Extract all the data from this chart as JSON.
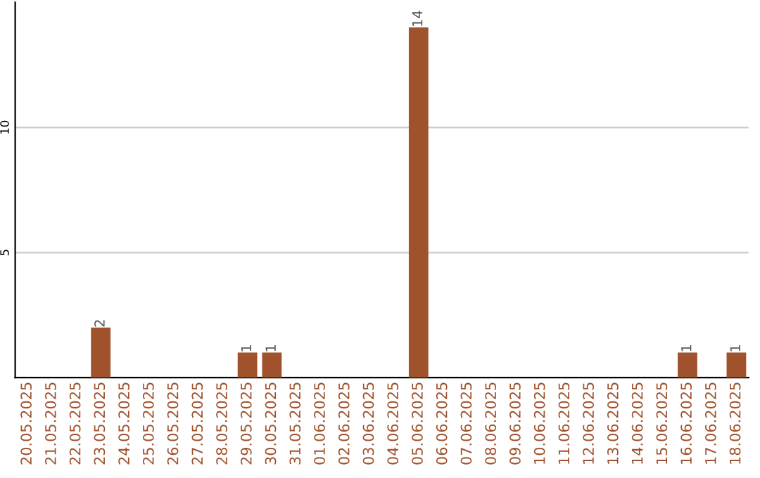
{
  "chart_data": {
    "type": "bar",
    "categories": [
      "20.05.2025",
      "21.05.2025",
      "22.05.2025",
      "23.05.2025",
      "24.05.2025",
      "25.05.2025",
      "26.05.2025",
      "27.05.2025",
      "28.05.2025",
      "29.05.2025",
      "30.05.2025",
      "31.05.2025",
      "01.06.2025",
      "02.06.2025",
      "03.06.2025",
      "04.06.2025",
      "05.06.2025",
      "06.06.2025",
      "07.06.2025",
      "08.06.2025",
      "09.06.2025",
      "10.06.2025",
      "11.06.2025",
      "12.06.2025",
      "13.06.2025",
      "14.06.2025",
      "15.06.2025",
      "16.06.2025",
      "17.06.2025",
      "18.06.2025"
    ],
    "values": [
      0,
      0,
      0,
      2,
      0,
      0,
      0,
      0,
      0,
      1,
      1,
      0,
      0,
      0,
      0,
      0,
      14,
      0,
      0,
      0,
      0,
      0,
      0,
      0,
      0,
      0,
      0,
      1,
      0,
      1
    ],
    "value_labels": [
      null,
      null,
      null,
      "2",
      null,
      null,
      null,
      null,
      null,
      "1",
      "1",
      null,
      null,
      null,
      null,
      null,
      "14",
      null,
      null,
      null,
      null,
      null,
      null,
      null,
      null,
      null,
      null,
      "1",
      null,
      "1"
    ],
    "color": "#a0522d",
    "ylim": [
      0,
      15
    ],
    "yticks": [
      5,
      10
    ],
    "grid": "y"
  }
}
